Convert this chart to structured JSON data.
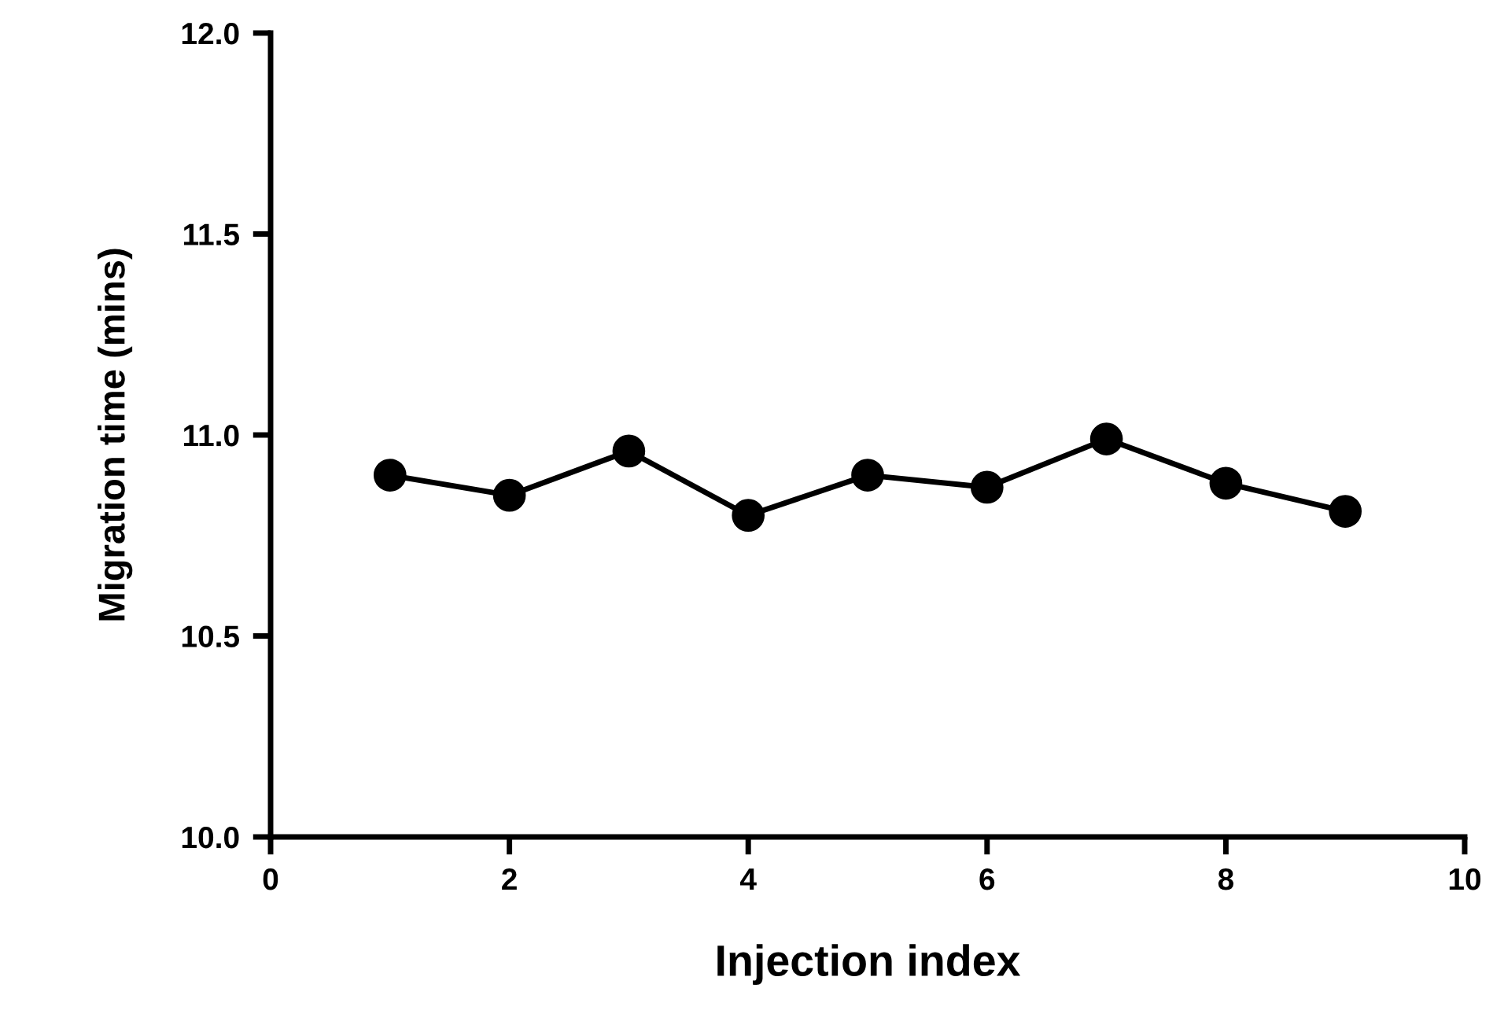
{
  "chart_data": {
    "type": "line",
    "xlabel": "Injection index",
    "ylabel": "Migration time (mins)",
    "x": [
      1,
      2,
      3,
      4,
      5,
      6,
      7,
      8,
      9
    ],
    "series": [
      {
        "color": "#000000",
        "values": [
          10.9,
          10.85,
          10.96,
          10.8,
          10.9,
          10.87,
          10.99,
          10.88,
          10.81
        ]
      }
    ],
    "xlim": [
      0,
      10
    ],
    "xticks": [
      0,
      2,
      4,
      6,
      8,
      10
    ],
    "ylim": [
      10.0,
      12.0
    ],
    "yticks": [
      {
        "value": 10.0,
        "label": "10.0"
      },
      {
        "value": 10.5,
        "label": "10.5"
      },
      {
        "value": 11.0,
        "label": "11.0"
      },
      {
        "value": 11.5,
        "label": "11.5"
      },
      {
        "value": 12.0,
        "label": "12.0"
      }
    ],
    "grid": false,
    "legend": false,
    "marker": "circle",
    "line_style": "solid"
  }
}
